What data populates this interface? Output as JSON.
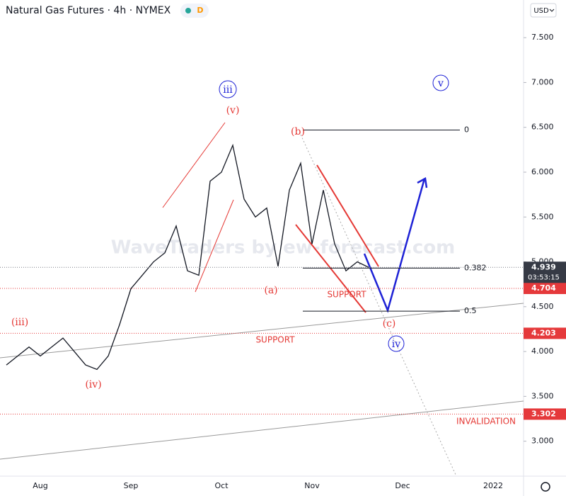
{
  "header": {
    "title": "Natural Gas Futures · 4h · NYMEX",
    "badge": "D",
    "currency": "USD"
  },
  "chart_data": {
    "type": "line",
    "categories": [
      null,
      null,
      null,
      "Aug",
      null,
      null,
      null,
      null,
      null,
      null,
      null,
      "Sep",
      null,
      null,
      null,
      null,
      null,
      null,
      null,
      "Oct",
      null,
      null,
      null,
      null,
      null,
      null,
      null,
      "Nov",
      null,
      null,
      null,
      null,
      null,
      null,
      null,
      "Dec",
      null,
      null,
      null,
      null,
      null,
      null,
      null,
      "2022",
      null,
      null
    ],
    "values": [
      3.85,
      3.95,
      4.05,
      3.95,
      4.05,
      4.15,
      4.0,
      3.85,
      3.8,
      3.95,
      4.3,
      4.7,
      4.85,
      5.0,
      5.1,
      5.4,
      4.9,
      4.85,
      5.9,
      6.0,
      6.3,
      5.7,
      5.5,
      5.6,
      4.95,
      5.8,
      6.1,
      5.2,
      5.8,
      5.2,
      4.9,
      5.0,
      4.939,
      null,
      null,
      null,
      null,
      null,
      null,
      null,
      null,
      null,
      null,
      null,
      null,
      null
    ],
    "color": "#131722",
    "ylim": [
      2.61,
      7.92
    ],
    "yticks": [
      {
        "value": 3,
        "label": "3.000"
      },
      {
        "value": 3.5,
        "label": "3.500"
      },
      {
        "value": 4,
        "label": "4.000"
      },
      {
        "value": 4.5,
        "label": "4.500"
      },
      {
        "value": 5,
        "label": "5.000"
      },
      {
        "value": 5.5,
        "label": "5.500"
      },
      {
        "value": 6,
        "label": "6.000"
      },
      {
        "value": 6.5,
        "label": "6.500"
      },
      {
        "value": 7,
        "label": "7.000"
      },
      {
        "value": 7.5,
        "label": "7.500"
      }
    ],
    "last_price": 4.939,
    "countdown": "03:53:15",
    "levels": [
      4.704,
      4.203,
      3.302
    ],
    "level_color": "#e5393b",
    "fib": [
      {
        "ratio": 0,
        "price": 6.47
      },
      {
        "ratio": 0.382,
        "price": 4.93
      },
      {
        "ratio": 0.5,
        "price": 4.45
      }
    ],
    "annotations": [
      "(iii)",
      "(iv)",
      "(v)",
      "iii",
      "(a)",
      "(b)",
      "(c)",
      "iv",
      "v",
      "SUPPORT",
      "SUPPORT",
      "INVALIDATION"
    ],
    "watermark": "WaveTraders by ew-forecast.com"
  }
}
